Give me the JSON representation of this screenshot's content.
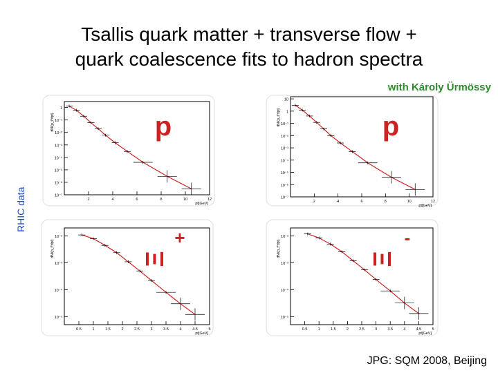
{
  "slide": {
    "title_line1": "Tsallis quark matter + transverse flow +",
    "title_line2": "quark coalescence fits to hadron spectra",
    "credit": "with Károly Ürmössy",
    "side_label": "RHIC data",
    "footer": "JPG: SQM 2008, Beijing",
    "curve_color": "#cc2222",
    "particle_color": "#cc2222"
  },
  "chart_data": [
    {
      "type": "scatter",
      "particle": "p",
      "ylabel": "dN/(p_t*dpt)",
      "xlabel": "pt[GeV]",
      "xlim": [
        0,
        12
      ],
      "log_y": true,
      "ylim": [
        1e-07,
        3
      ],
      "yticks": [
        "1",
        "10⁻¹",
        "10⁻²",
        "10⁻³",
        "10⁻⁴",
        "10⁻⁵",
        "10⁻⁶",
        "10⁻⁷"
      ],
      "ytick_values": [
        1,
        0.1,
        0.01,
        0.001,
        0.0001,
        1e-05,
        1e-06,
        1e-07
      ],
      "xticks": [
        "2",
        "4",
        "6",
        "8",
        "10",
        "12"
      ],
      "xtick_values": [
        2,
        4,
        6,
        8,
        10,
        12
      ],
      "points": [
        {
          "x": 0.4,
          "y": 1.3
        },
        {
          "x": 1.0,
          "y": 0.6
        },
        {
          "x": 1.6,
          "y": 0.2
        },
        {
          "x": 2.2,
          "y": 0.06
        },
        {
          "x": 2.8,
          "y": 0.02
        },
        {
          "x": 3.4,
          "y": 0.006
        },
        {
          "x": 4.2,
          "y": 0.0015
        },
        {
          "x": 5.2,
          "y": 0.0003
        },
        {
          "x": 6.5,
          "y": 4e-05
        },
        {
          "x": 8.5,
          "y": 3e-06
        },
        {
          "x": 10.5,
          "y": 3e-07
        }
      ]
    },
    {
      "type": "scatter",
      "particle": "p",
      "ylabel": "dN/(p_t*dpt)",
      "xlabel": "pt[GeV]",
      "xlim": [
        0,
        12
      ],
      "log_y": true,
      "ylim": [
        1e-07,
        15
      ],
      "yticks": [
        "10",
        "1",
        "10⁻¹",
        "10⁻²",
        "10⁻³",
        "10⁻⁴",
        "10⁻⁵",
        "10⁻⁶",
        "10⁻⁷"
      ],
      "ytick_values": [
        10,
        1,
        0.1,
        0.01,
        0.001,
        0.0001,
        1e-05,
        1e-06,
        1e-07
      ],
      "xticks": [
        "2",
        "4",
        "6",
        "8",
        "10",
        "12"
      ],
      "xtick_values": [
        2,
        4,
        6,
        8,
        10,
        12
      ],
      "points": [
        {
          "x": 0.4,
          "y": 3.0
        },
        {
          "x": 1.0,
          "y": 1.2
        },
        {
          "x": 1.6,
          "y": 0.4
        },
        {
          "x": 2.2,
          "y": 0.12
        },
        {
          "x": 2.8,
          "y": 0.035
        },
        {
          "x": 3.4,
          "y": 0.01
        },
        {
          "x": 4.2,
          "y": 0.0025
        },
        {
          "x": 5.2,
          "y": 0.0005
        },
        {
          "x": 6.5,
          "y": 6e-05
        },
        {
          "x": 8.5,
          "y": 4e-06
        },
        {
          "x": 10.5,
          "y": 4e-07
        }
      ]
    },
    {
      "type": "scatter",
      "particle": "Ξ",
      "particle_sup": "+",
      "ylabel": "dN/(p_t*dpt)",
      "xlabel": "pt[GeV]",
      "xlim": [
        0,
        5
      ],
      "log_y": true,
      "ylim": [
        5e-06,
        0.02
      ],
      "yticks": [
        "10⁻²",
        "10⁻³",
        "10⁻⁴",
        "10⁻⁵"
      ],
      "ytick_values": [
        0.01,
        0.001,
        0.0001,
        1e-05
      ],
      "xticks": [
        "0.5",
        "1",
        "1.5",
        "2",
        "2.5",
        "3",
        "3.5",
        "4",
        "4.5",
        "5"
      ],
      "xtick_values": [
        0.5,
        1,
        1.5,
        2,
        2.5,
        3,
        3.5,
        4,
        4.5,
        5
      ],
      "points": [
        {
          "x": 0.6,
          "y": 0.011
        },
        {
          "x": 1.0,
          "y": 0.008
        },
        {
          "x": 1.4,
          "y": 0.0045
        },
        {
          "x": 1.8,
          "y": 0.0024
        },
        {
          "x": 2.2,
          "y": 0.0011
        },
        {
          "x": 2.6,
          "y": 0.0005
        },
        {
          "x": 3.0,
          "y": 0.00022
        },
        {
          "x": 3.5,
          "y": 8e-05
        },
        {
          "x": 4.0,
          "y": 3e-05
        },
        {
          "x": 4.5,
          "y": 1.2e-05
        }
      ]
    },
    {
      "type": "scatter",
      "particle": "Ξ",
      "particle_sup": "-",
      "ylabel": "dN/(p_t*dpt)",
      "xlabel": "pt[GeV]",
      "xlim": [
        0,
        5
      ],
      "log_y": true,
      "ylim": [
        5e-06,
        0.02
      ],
      "yticks": [
        "10⁻²",
        "10⁻³",
        "10⁻⁴",
        "10⁻⁵"
      ],
      "ytick_values": [
        0.01,
        0.001,
        0.0001,
        1e-05
      ],
      "xticks": [
        "0.5",
        "1",
        "1.5",
        "2",
        "2.5",
        "3",
        "3.5",
        "4",
        "4.5",
        "5"
      ],
      "xtick_values": [
        0.5,
        1,
        1.5,
        2,
        2.5,
        3,
        3.5,
        4,
        4.5,
        5
      ],
      "points": [
        {
          "x": 0.6,
          "y": 0.012
        },
        {
          "x": 1.0,
          "y": 0.0085
        },
        {
          "x": 1.4,
          "y": 0.005
        },
        {
          "x": 1.8,
          "y": 0.0026
        },
        {
          "x": 2.2,
          "y": 0.0012
        },
        {
          "x": 2.6,
          "y": 0.00055
        },
        {
          "x": 3.0,
          "y": 0.00024
        },
        {
          "x": 3.5,
          "y": 9e-05
        },
        {
          "x": 4.0,
          "y": 3.2e-05
        },
        {
          "x": 4.5,
          "y": 1.3e-05
        }
      ]
    }
  ]
}
